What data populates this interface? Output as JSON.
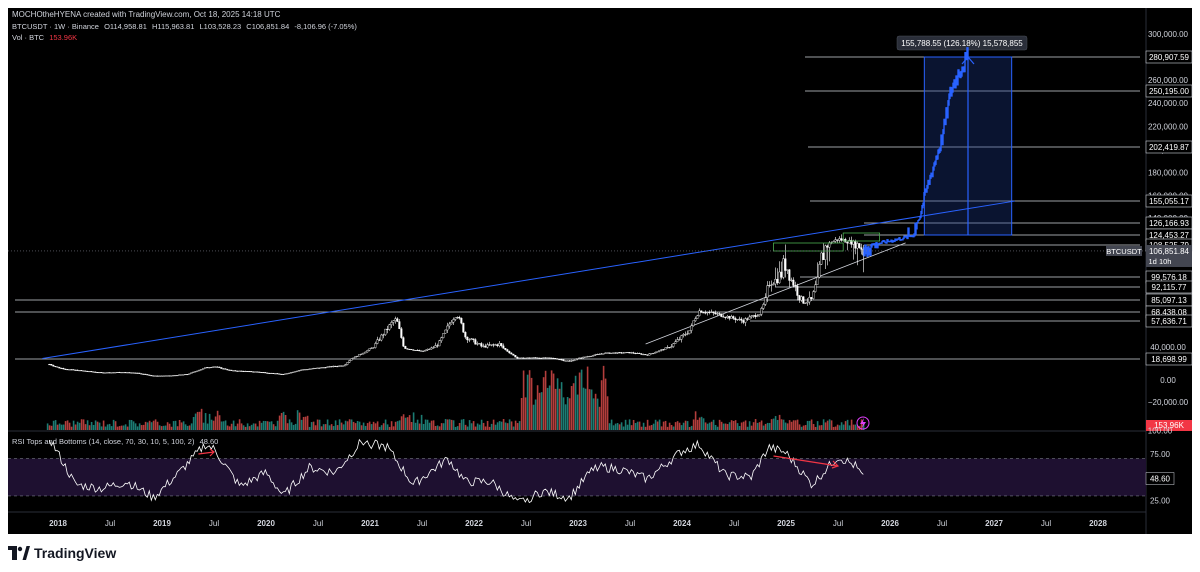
{
  "header": {
    "text": "MOCHOtheHYENA created with TradingView.com, Oct 18, 2025 14:18 UTC"
  },
  "legend": {
    "symbol": "BTCUSDT · 1W · Binance",
    "open": "O114,958.81",
    "high": "H115,963.81",
    "low": "L103,528.23",
    "close": "C106,851.84",
    "change": "-8,106.96 (-7.05%)",
    "vol_label": "Vol · BTC",
    "vol_value": "153.96K"
  },
  "rsi_legend": {
    "label": "RSI Tops and Bottoms (14, close, 70, 30, 10, 5, 100, 2)",
    "value": "48.60"
  },
  "brand": "TradingView",
  "colors": {
    "background": "#000000",
    "candle": "#ffffff",
    "projection": "#2962ff",
    "trendline": "#2962ff",
    "volume_up": "#26a69a",
    "volume_down": "#ef5350",
    "rsi_fill": "#1e1030",
    "rsi_arrow": "#f23645",
    "green_box": "#4caf50"
  },
  "chart_data": [
    {
      "type": "candlestick",
      "symbol": "BTCUSDT",
      "timeframe": "1W",
      "exchange": "Binance",
      "x_ticks": [
        "2018",
        "Jul",
        "2019",
        "Jul",
        "2020",
        "Jul",
        "2021",
        "Jul",
        "2022",
        "Jul",
        "2023",
        "Jul",
        "2024",
        "Jul",
        "2025",
        "Jul",
        "2026",
        "Jul",
        "2027",
        "Jul",
        "2028"
      ],
      "y_ticks": [
        300000,
        280000,
        260000,
        240000,
        220000,
        200000,
        180000,
        160000,
        140000,
        40000,
        20000,
        0,
        -20000
      ],
      "y_tick_labels": [
        "300,000.00",
        "280,000.00",
        "260,000.00",
        "240,000.00",
        "220,000.00",
        "200,000.00",
        "180,000.00",
        "160,000.00",
        "140,000.00",
        "40,000.00",
        "20,000.00",
        "0.00",
        "−20,000.00"
      ],
      "levels": [
        {
          "label": "280,907.59",
          "value": 280907.59
        },
        {
          "label": "250,195.00",
          "value": 250195.0
        },
        {
          "label": "202,419.87",
          "value": 202419.87
        },
        {
          "label": "155,055.17",
          "value": 155055.17
        },
        {
          "label": "126,166.93",
          "value": 126166.93
        },
        {
          "label": "124,453.27",
          "value": 124453.27
        },
        {
          "label": "108,525.79",
          "value": 108525.79
        },
        {
          "label": "99,576.18",
          "value": 99576.18
        },
        {
          "label": "92,115.77",
          "value": 92115.77
        },
        {
          "label": "85,097.13",
          "value": 85097.13
        },
        {
          "label": "68,438.08",
          "value": 68438.08
        },
        {
          "label": "57,636.71",
          "value": 57636.71
        },
        {
          "label": "18,698.99",
          "value": 18698.99
        }
      ],
      "last_price": {
        "label": "106,851.84",
        "symbol": "BTCUSDT",
        "countdown": "1d 10h"
      },
      "measure_label": "155,788.55 (126.18%) 15,578,855",
      "price_series": [
        [
          "2017-12",
          14000
        ],
        [
          "2018-01",
          11000
        ],
        [
          "2018-02",
          9500
        ],
        [
          "2018-04",
          8000
        ],
        [
          "2018-06",
          6500
        ],
        [
          "2018-08",
          6800
        ],
        [
          "2018-10",
          6400
        ],
        [
          "2018-12",
          3600
        ],
        [
          "2019-02",
          3800
        ],
        [
          "2019-04",
          5200
        ],
        [
          "2019-06",
          11000
        ],
        [
          "2019-07",
          12000
        ],
        [
          "2019-09",
          8300
        ],
        [
          "2019-12",
          7200
        ],
        [
          "2020-03",
          5000
        ],
        [
          "2020-05",
          9000
        ],
        [
          "2020-08",
          11500
        ],
        [
          "2020-10",
          13000
        ],
        [
          "2020-12",
          28000
        ],
        [
          "2021-02",
          45000
        ],
        [
          "2021-04",
          60000
        ],
        [
          "2021-05",
          38000
        ],
        [
          "2021-07",
          32000
        ],
        [
          "2021-09",
          43000
        ],
        [
          "2021-11",
          65000
        ],
        [
          "2021-12",
          47000
        ],
        [
          "2022-02",
          40000
        ],
        [
          "2022-04",
          42000
        ],
        [
          "2022-06",
          20000
        ],
        [
          "2022-08",
          21000
        ],
        [
          "2022-10",
          20000
        ],
        [
          "2022-12",
          16500
        ],
        [
          "2023-02",
          23000
        ],
        [
          "2023-04",
          29000
        ],
        [
          "2023-07",
          30000
        ],
        [
          "2023-09",
          26000
        ],
        [
          "2023-11",
          37000
        ],
        [
          "2023-12",
          42000
        ],
        [
          "2024-02",
          52000
        ],
        [
          "2024-03",
          70000
        ],
        [
          "2024-05",
          66000
        ],
        [
          "2024-08",
          58000
        ],
        [
          "2024-10",
          67000
        ],
        [
          "2024-11",
          95000
        ],
        [
          "2024-12",
          98000
        ],
        [
          "2025-01",
          104000
        ],
        [
          "2025-03",
          82000
        ],
        [
          "2025-04",
          85000
        ],
        [
          "2025-05",
          104000
        ],
        [
          "2025-07",
          118000
        ],
        [
          "2025-08",
          115000
        ],
        [
          "2025-10",
          106851.84
        ]
      ],
      "projection_series": [
        [
          "2025-10",
          106851.84
        ],
        [
          "2025-12",
          112000
        ],
        [
          "2026-02",
          118000
        ],
        [
          "2026-03",
          121000
        ],
        [
          "2026-04",
          126000
        ],
        [
          "2026-05",
          160000
        ],
        [
          "2026-06",
          185000
        ],
        [
          "2026-07",
          210000
        ],
        [
          "2026-08",
          250000
        ],
        [
          "2026-09",
          268000
        ],
        [
          "2026-10",
          280907.59
        ]
      ]
    },
    {
      "type": "line",
      "name": "RSI Tops and Bottoms (14, close, 70, 30, 10, 5, 100, 2)",
      "y_ticks": [
        100,
        75,
        25
      ],
      "y_tick_labels": [
        "100.00",
        "75.00",
        "25.00"
      ],
      "bands": [
        70,
        30
      ],
      "last_value": 48.6,
      "last_label": "48.60",
      "series": [
        [
          "2017-12",
          92
        ],
        [
          "2018-03",
          42
        ],
        [
          "2018-06",
          38
        ],
        [
          "2018-09",
          45
        ],
        [
          "2018-12",
          28
        ],
        [
          "2019-03",
          55
        ],
        [
          "2019-06",
          85
        ],
        [
          "2019-07",
          80
        ],
        [
          "2019-10",
          40
        ],
        [
          "2020-01",
          55
        ],
        [
          "2020-03",
          30
        ],
        [
          "2020-06",
          60
        ],
        [
          "2020-09",
          55
        ],
        [
          "2020-12",
          88
        ],
        [
          "2021-03",
          82
        ],
        [
          "2021-06",
          42
        ],
        [
          "2021-10",
          70
        ],
        [
          "2021-12",
          45
        ],
        [
          "2022-03",
          45
        ],
        [
          "2022-06",
          22
        ],
        [
          "2022-09",
          35
        ],
        [
          "2022-12",
          28
        ],
        [
          "2023-03",
          62
        ],
        [
          "2023-06",
          58
        ],
        [
          "2023-09",
          48
        ],
        [
          "2024-01",
          78
        ],
        [
          "2024-03",
          85
        ],
        [
          "2024-06",
          52
        ],
        [
          "2024-09",
          50
        ],
        [
          "2024-11",
          82
        ],
        [
          "2025-01",
          76
        ],
        [
          "2025-04",
          42
        ],
        [
          "2025-07",
          72
        ],
        [
          "2025-09",
          62
        ],
        [
          "2025-10",
          48.6
        ]
      ]
    }
  ]
}
